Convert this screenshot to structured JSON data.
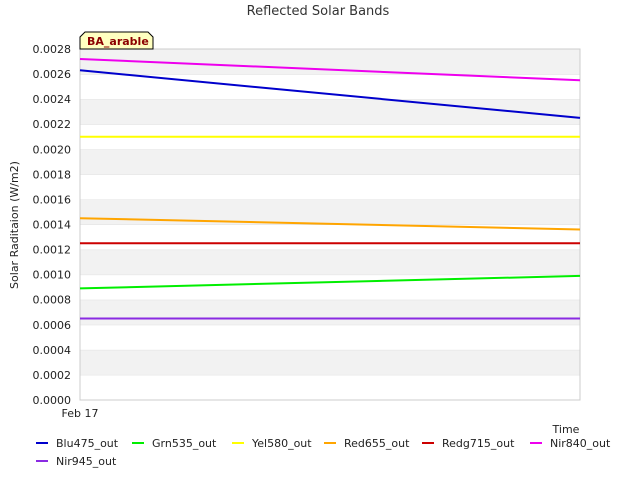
{
  "chart_data": {
    "type": "line",
    "title": "Reflected Solar Bands",
    "badge": "BA_arable",
    "xlabel": "Time",
    "ylabel": "Solar Raditaion (W/m2)",
    "x_tick_labels": [
      "Feb 17"
    ],
    "ylim": [
      0,
      0.0028
    ],
    "yticks": [
      0.0,
      0.0002,
      0.0004,
      0.0006,
      0.0008,
      0.001,
      0.0012,
      0.0014,
      0.0016,
      0.0018,
      0.002,
      0.0022,
      0.0024,
      0.0026,
      0.0028
    ],
    "ytick_labels": [
      "0.0000",
      "0.0002",
      "0.0004",
      "0.0006",
      "0.0008",
      "0.0010",
      "0.0012",
      "0.0014",
      "0.0016",
      "0.0018",
      "0.0020",
      "0.0022",
      "0.0024",
      "0.0026",
      "0.0028"
    ],
    "grid": true,
    "legend_position": "bottom",
    "x": [
      "start",
      "end"
    ],
    "series": [
      {
        "name": "Blu475_out",
        "color": "#0000cc",
        "values": [
          0.00263,
          0.00225
        ]
      },
      {
        "name": "Grn535_out",
        "color": "#00ee00",
        "values": [
          0.00089,
          0.00099
        ]
      },
      {
        "name": "Yel580_out",
        "color": "#ffff00",
        "values": [
          0.0021,
          0.0021
        ]
      },
      {
        "name": "Red655_out",
        "color": "#ffa500",
        "values": [
          0.00145,
          0.00136
        ]
      },
      {
        "name": "Redg715_out",
        "color": "#cc0000",
        "values": [
          0.00125,
          0.00125
        ]
      },
      {
        "name": "Nir840_out",
        "color": "#ee00ee",
        "values": [
          0.00272,
          0.00255
        ]
      },
      {
        "name": "Nir945_out",
        "color": "#8a2be2",
        "values": [
          0.00065,
          0.00065
        ]
      }
    ]
  }
}
